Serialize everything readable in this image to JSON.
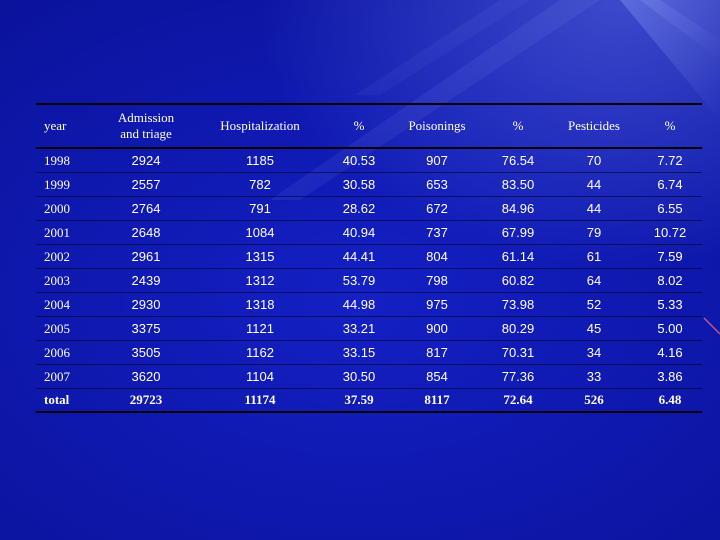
{
  "chart_data": {
    "type": "table",
    "columns": [
      "year",
      "Admission and triage",
      "Hospitalization",
      "%",
      "Poisonings",
      "%",
      "Pesticides",
      "%"
    ],
    "header_lines": {
      "admission": [
        "Admission",
        "and triage"
      ]
    },
    "rows": [
      [
        "1998",
        "2924",
        "1185",
        "40.53",
        "907",
        "76.54",
        "70",
        "7.72"
      ],
      [
        "1999",
        "2557",
        "782",
        "30.58",
        "653",
        "83.50",
        "44",
        "6.74"
      ],
      [
        "2000",
        "2764",
        "791",
        "28.62",
        "672",
        "84.96",
        "44",
        "6.55"
      ],
      [
        "2001",
        "2648",
        "1084",
        "40.94",
        "737",
        "67.99",
        "79",
        "10.72"
      ],
      [
        "2002",
        "2961",
        "1315",
        "44.41",
        "804",
        "61.14",
        "61",
        "7.59"
      ],
      [
        "2003",
        "2439",
        "1312",
        "53.79",
        "798",
        "60.82",
        "64",
        "8.02"
      ],
      [
        "2004",
        "2930",
        "1318",
        "44.98",
        "975",
        "73.98",
        "52",
        "5.33"
      ],
      [
        "2005",
        "3375",
        "1121",
        "33.21",
        "900",
        "80.29",
        "45",
        "5.00"
      ],
      [
        "2006",
        "3505",
        "1162",
        "33.15",
        "817",
        "70.31",
        "34",
        "4.16"
      ],
      [
        "2007",
        "3620",
        "1104",
        "30.50",
        "854",
        "77.36",
        "33",
        "3.86"
      ]
    ],
    "total": [
      "total",
      "29723",
      "11174",
      "37.59",
      "8117",
      "72.64",
      "526",
      "6.48"
    ]
  },
  "colors": {
    "background": "#0b139e",
    "text": "#ffffff",
    "rule": "#000000"
  }
}
